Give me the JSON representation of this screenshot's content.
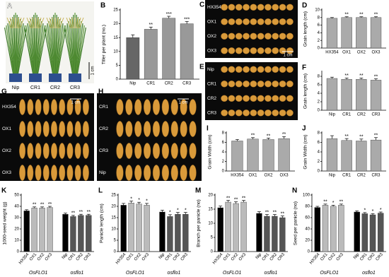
{
  "panels": [
    {
      "label": "A",
      "labels": [
        "Nip",
        "CR1",
        "CR2",
        "CR3"
      ],
      "scale": "1 cm"
    },
    {
      "label": "C",
      "labels": [
        "HX354",
        "OX1",
        "OX2",
        "OX3"
      ],
      "scale": "1 cm"
    },
    {
      "label": "E",
      "labels": [
        "Nip",
        "CR1",
        "CR2",
        "CR3"
      ]
    },
    {
      "label": "G",
      "labels": [
        "HX354",
        "OX1",
        "OX2",
        "OX3"
      ],
      "scale": "1 cm"
    },
    {
      "label": "H",
      "labels": [
        "CR1",
        "CR2",
        "CR3",
        "Nip"
      ],
      "scale": "1 cm"
    }
  ],
  "chart_data": [
    {
      "type": "bar",
      "label": "B",
      "ylabel": "Tiller per plant (no.)",
      "categories": [
        "Nip",
        "CR1",
        "CR2",
        "CR3"
      ],
      "values": [
        15,
        18,
        22,
        20
      ],
      "errors": [
        1,
        0.8,
        0.7,
        0.8
      ],
      "annotations": [
        null,
        "**",
        "***",
        "***"
      ],
      "colors": [
        "#666666",
        "#999999",
        "#999999",
        "#999999"
      ],
      "ylim": [
        0,
        25
      ],
      "yticks": [
        0,
        5,
        10,
        15,
        20,
        25
      ]
    },
    {
      "type": "bar",
      "label": "D",
      "ylabel": "Grain length (cm)",
      "categories": [
        "HX354",
        "OX1",
        "OX2",
        "OX3"
      ],
      "values": [
        7.8,
        8.0,
        8.0,
        8.0
      ],
      "errors": [
        0.2,
        0.2,
        0.2,
        0.2
      ],
      "annotations": [
        null,
        "**",
        "**",
        "**"
      ],
      "colors": [
        "#aaaaaa",
        "#aaaaaa",
        "#aaaaaa",
        "#aaaaaa"
      ],
      "ylim": [
        0,
        10
      ],
      "yticks": [
        0,
        2,
        4,
        6,
        8,
        10
      ]
    },
    {
      "type": "bar",
      "label": "F",
      "ylabel": "Grain length (cm)",
      "categories": [
        "Nip",
        "CR1",
        "CR2",
        "CR3"
      ],
      "values": [
        7.5,
        7.3,
        7.3,
        7.1
      ],
      "errors": [
        0.3,
        0.3,
        0.3,
        0.3
      ],
      "annotations": [
        null,
        "**",
        "**",
        "**"
      ],
      "colors": [
        "#aaaaaa",
        "#aaaaaa",
        "#aaaaaa",
        "#aaaaaa"
      ],
      "ylim": [
        0,
        9
      ],
      "yticks": [
        0,
        2,
        4,
        6,
        8
      ]
    },
    {
      "type": "bar",
      "label": "I",
      "ylabel": "Grain Width (cm)",
      "categories": [
        "HX354",
        "OX1",
        "OX2",
        "OX3"
      ],
      "values": [
        6.3,
        6.7,
        6.6,
        6.8
      ],
      "errors": [
        0.3,
        0.3,
        0.3,
        0.4
      ],
      "annotations": [
        null,
        "**",
        "**",
        "**"
      ],
      "colors": [
        "#aaaaaa",
        "#aaaaaa",
        "#aaaaaa",
        "#aaaaaa"
      ],
      "ylim": [
        0,
        8
      ],
      "yticks": [
        0,
        2,
        4,
        6,
        8
      ]
    },
    {
      "type": "bar",
      "label": "J",
      "ylabel": "Grain Width (cm)",
      "categories": [
        "Nip",
        "CR1",
        "CR2",
        "CR3"
      ],
      "values": [
        6.8,
        6.4,
        6.3,
        6.5
      ],
      "errors": [
        0.6,
        0.4,
        0.4,
        0.5
      ],
      "annotations": [
        null,
        "**",
        "**",
        "**"
      ],
      "colors": [
        "#aaaaaa",
        "#aaaaaa",
        "#aaaaaa",
        "#aaaaaa"
      ],
      "ylim": [
        0,
        8
      ],
      "yticks": [
        0,
        2,
        4,
        6,
        8
      ]
    },
    {
      "type": "bar",
      "label": "K",
      "ylabel": "1000-seed weight (g)",
      "categories": [
        "HX354",
        "OX1",
        "OX2",
        "OX3",
        "Nip",
        "CR1",
        "CR2",
        "CR3"
      ],
      "groups": [
        "OsFLO1",
        "osflo1"
      ],
      "values": [
        36,
        38.5,
        38.5,
        39,
        33,
        31,
        32,
        32
      ],
      "errors": [
        1,
        1,
        1,
        1,
        1,
        1,
        1,
        1
      ],
      "annotations": [
        null,
        "**",
        "**",
        "**",
        null,
        "**",
        "**",
        "**"
      ],
      "colors": [
        "#000000",
        "#bbbbbb",
        "#bbbbbb",
        "#bbbbbb",
        "#000000",
        "#555555",
        "#555555",
        "#555555"
      ],
      "ylim": [
        0,
        50
      ],
      "yticks": [
        0,
        10,
        20,
        30,
        40,
        50
      ]
    },
    {
      "type": "bar",
      "label": "L",
      "ylabel": "Panicle length (cm)",
      "categories": [
        "HX354",
        "OX1",
        "OX2",
        "OX3",
        "Nip",
        "CR1",
        "CR2",
        "CR3"
      ],
      "groups": [
        "OsFLO1",
        "osflo1"
      ],
      "values": [
        20.5,
        21.5,
        21,
        20.5,
        17.5,
        15.5,
        16.5,
        16.5
      ],
      "errors": [
        0.8,
        0.8,
        0.8,
        0.8,
        0.8,
        0.8,
        0.8,
        0.8
      ],
      "annotations": [
        null,
        "*",
        "*",
        "*",
        null,
        "*",
        "*",
        "*"
      ],
      "colors": [
        "#000000",
        "#bbbbbb",
        "#bbbbbb",
        "#bbbbbb",
        "#000000",
        "#555555",
        "#555555",
        "#555555"
      ],
      "ylim": [
        0,
        25
      ],
      "yticks": [
        0,
        5,
        10,
        15,
        20,
        25
      ]
    },
    {
      "type": "bar",
      "label": "M",
      "ylabel": "Branch per panicle (no)",
      "categories": [
        "HX354",
        "OX1",
        "OX2",
        "OX3",
        "Nip",
        "CR1",
        "CR2",
        "CR3"
      ],
      "groups": [
        "OsFLO1",
        "osflo1"
      ],
      "values": [
        15.5,
        17.5,
        17,
        17.5,
        13.5,
        12.5,
        12.5,
        12
      ],
      "errors": [
        0.6,
        0.6,
        0.6,
        0.6,
        0.6,
        0.6,
        0.6,
        0.6
      ],
      "annotations": [
        null,
        "**",
        "**",
        "**",
        null,
        "**",
        "**",
        "**"
      ],
      "colors": [
        "#000000",
        "#bbbbbb",
        "#bbbbbb",
        "#bbbbbb",
        "#000000",
        "#555555",
        "#555555",
        "#555555"
      ],
      "ylim": [
        0,
        20
      ],
      "yticks": [
        0,
        5,
        10,
        15,
        20
      ]
    },
    {
      "type": "bar",
      "label": "N",
      "ylabel": "Seed per panicle (no)",
      "categories": [
        "HX354",
        "OX1",
        "OX2",
        "OX3",
        "Nip",
        "CR1",
        "CR2",
        "CR3"
      ],
      "groups": [
        "OsFLO1",
        "osflo1"
      ],
      "values": [
        78,
        82,
        80,
        82,
        70,
        67,
        65,
        68
      ],
      "errors": [
        2,
        2,
        2,
        2,
        2,
        2,
        2,
        2
      ],
      "annotations": [
        null,
        "**",
        "*",
        "**",
        null,
        "*",
        "*",
        "*"
      ],
      "colors": [
        "#000000",
        "#bbbbbb",
        "#bbbbbb",
        "#bbbbbb",
        "#000000",
        "#555555",
        "#555555",
        "#555555"
      ],
      "ylim": [
        0,
        100
      ],
      "yticks": [
        0,
        20,
        40,
        60,
        80,
        100
      ]
    }
  ]
}
